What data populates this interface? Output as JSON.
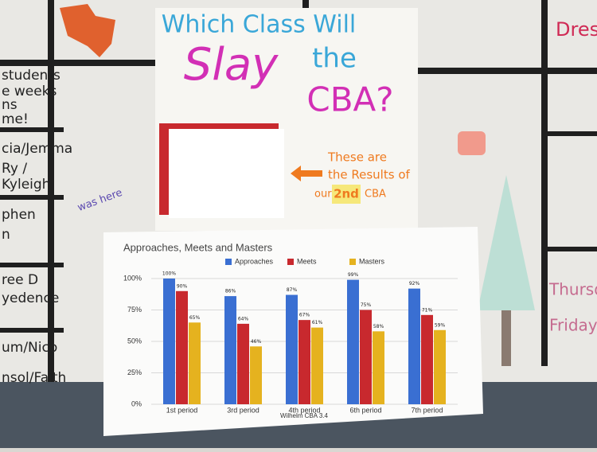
{
  "chart_data": {
    "type": "bar",
    "title": "Approaches, Meets and Masters",
    "footer": "Wilhelm CBA 3.4",
    "categories": [
      "1st period",
      "3rd period",
      "4th period",
      "6th period",
      "7th period"
    ],
    "series": [
      {
        "name": "Approaches",
        "color": "#3a6fd2",
        "values": [
          100,
          86,
          87,
          99,
          92
        ],
        "value_labels": [
          "100%",
          "86%",
          "87%",
          "99%",
          "92%"
        ]
      },
      {
        "name": "Meets",
        "color": "#c8292e",
        "values": [
          90,
          64,
          67,
          75,
          71
        ],
        "value_labels": [
          "90%",
          "64%",
          "67%",
          "75%",
          "71%"
        ]
      },
      {
        "name": "Masters",
        "color": "#e5b21f",
        "values": [
          65,
          46,
          61,
          58,
          59
        ],
        "value_labels": [
          "65%",
          "46%",
          "61%",
          "58%",
          "59%"
        ]
      }
    ],
    "ylim": [
      0,
      100
    ],
    "yticks": [
      {
        "value": 0,
        "label": "0%"
      },
      {
        "value": 25,
        "label": "25%"
      },
      {
        "value": 50,
        "label": "50%"
      },
      {
        "value": 75,
        "label": "75%"
      },
      {
        "value": 100,
        "label": "100%"
      }
    ],
    "grid": true
  },
  "poster": {
    "line1": "Which Class Will",
    "line2": "Slay",
    "line3": "the",
    "line4": "CBA?",
    "note1": "These are",
    "note2": "the Results of",
    "note3": "our",
    "note4": "2nd",
    "note5": "CBA"
  },
  "board": {
    "left": [
      "students",
      "e weeks",
      "ns",
      "me!",
      "cia/Jemma",
      "Ry /",
      "Kyleigh",
      "phen",
      "n",
      "ree D",
      "yedence",
      "um/Nico",
      "nsol/Faith"
    ],
    "doodle": "was here",
    "right": [
      "Dress",
      "Thursday:",
      "Friday:"
    ]
  }
}
